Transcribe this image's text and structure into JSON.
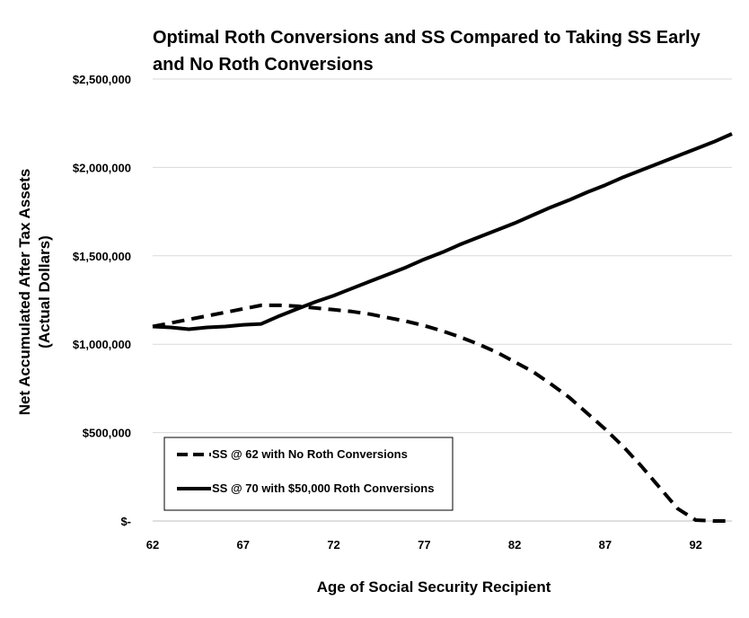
{
  "chart_data": {
    "type": "line",
    "title_lines": [
      "Optimal Roth Conversions and SS Compared to Taking SS Early",
      "and No Roth Conversions"
    ],
    "xlabel": "Age of Social Security Recipient",
    "ylabel_lines": [
      "Net Accumulated After Tax Assets",
      "(Actual Dollars)"
    ],
    "xlim": [
      62,
      94
    ],
    "ylim": [
      0,
      2500000
    ],
    "x_ticks": [
      62,
      67,
      72,
      77,
      82,
      87,
      92
    ],
    "y_ticks": [
      {
        "value": 0,
        "label": "$-"
      },
      {
        "value": 500000,
        "label": "$500,000"
      },
      {
        "value": 1000000,
        "label": "$1,000,000"
      },
      {
        "value": 1500000,
        "label": "$1,500,000"
      },
      {
        "value": 2000000,
        "label": "$2,000,000"
      },
      {
        "value": 2500000,
        "label": "$2,500,000"
      }
    ],
    "grid": "y",
    "legend_position": "bottom-left",
    "series": [
      {
        "name": "SS @ 62 with No Roth Conversions",
        "style": "dashed",
        "color": "#000000",
        "x": [
          62,
          63,
          64,
          65,
          66,
          67,
          68,
          69,
          70,
          71,
          72,
          73,
          74,
          75,
          76,
          77,
          78,
          79,
          80,
          81,
          82,
          83,
          84,
          85,
          86,
          87,
          88,
          89,
          90,
          91,
          92,
          93,
          94
        ],
        "y": [
          1100000,
          1120000,
          1140000,
          1160000,
          1180000,
          1200000,
          1220000,
          1220000,
          1215000,
          1205000,
          1195000,
          1185000,
          1170000,
          1150000,
          1130000,
          1105000,
          1075000,
          1040000,
          1000000,
          955000,
          900000,
          845000,
          775000,
          700000,
          610000,
          520000,
          420000,
          310000,
          190000,
          70000,
          5000,
          0,
          0
        ]
      },
      {
        "name": "SS @ 70 with $50,000 Roth Conversions",
        "style": "solid",
        "color": "#000000",
        "x": [
          62,
          63,
          64,
          65,
          66,
          67,
          68,
          69,
          70,
          71,
          72,
          73,
          74,
          75,
          76,
          77,
          78,
          79,
          80,
          81,
          82,
          83,
          84,
          85,
          86,
          87,
          88,
          89,
          90,
          91,
          92,
          93,
          94
        ],
        "y": [
          1100000,
          1095000,
          1085000,
          1095000,
          1100000,
          1110000,
          1115000,
          1160000,
          1200000,
          1240000,
          1275000,
          1315000,
          1355000,
          1395000,
          1435000,
          1480000,
          1520000,
          1565000,
          1605000,
          1645000,
          1685000,
          1730000,
          1775000,
          1815000,
          1860000,
          1900000,
          1945000,
          1985000,
          2025000,
          2065000,
          2105000,
          2145000,
          2190000
        ]
      }
    ]
  }
}
